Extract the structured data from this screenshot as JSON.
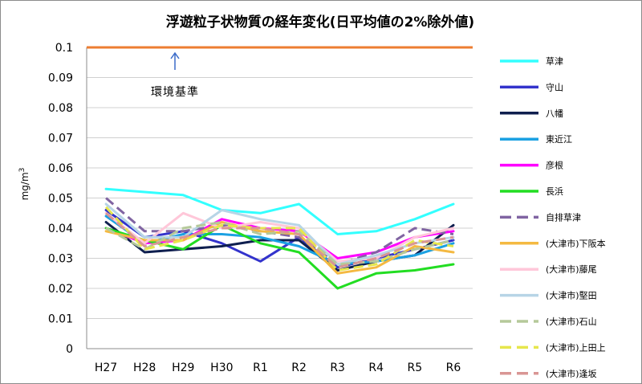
{
  "chart_data": {
    "type": "line",
    "title": "浮遊粒子状物質の経年変化(日平均値の2%除外値)",
    "xlabel": "",
    "ylabel": "mg/m3",
    "ylabel_main": "mg/m",
    "ylabel_sup": "3",
    "ylim": [
      0,
      0.1
    ],
    "yticks": [
      0,
      0.01,
      0.02,
      0.03,
      0.04,
      0.05,
      0.06,
      0.07,
      0.08,
      0.09,
      0.1
    ],
    "ytick_labels": [
      "0",
      "0.01",
      "0.02",
      "0.03",
      "0.04",
      "0.05",
      "0.06",
      "0.07",
      "0.08",
      "0.09",
      "0.1"
    ],
    "categories": [
      "H27",
      "H28",
      "H29",
      "H30",
      "R1",
      "R2",
      "R3",
      "R4",
      "R5",
      "R6"
    ],
    "grid": true,
    "legend_position": "right",
    "reference_line": {
      "value": 0.1,
      "label": "環境基準",
      "color": "#ED7D31"
    },
    "series": [
      {
        "name": "草津",
        "color": "#33FFFF",
        "dashed": false,
        "values": [
          0.053,
          0.052,
          0.051,
          0.046,
          0.045,
          0.048,
          0.038,
          0.039,
          0.043,
          0.048
        ]
      },
      {
        "name": "守山",
        "color": "#3333CC",
        "dashed": false,
        "values": [
          0.046,
          0.037,
          0.039,
          0.035,
          0.029,
          0.037,
          0.027,
          0.03,
          0.033,
          0.036
        ]
      },
      {
        "name": "八幡",
        "color": "#0F1F4F",
        "dashed": false,
        "values": [
          0.042,
          0.032,
          0.033,
          0.034,
          0.036,
          0.036,
          0.026,
          0.029,
          0.031,
          0.041
        ]
      },
      {
        "name": "東近江",
        "color": "#1BA1E2",
        "dashed": false,
        "values": [
          0.044,
          0.035,
          0.038,
          0.038,
          0.037,
          0.034,
          0.028,
          0.029,
          0.031,
          0.035
        ]
      },
      {
        "name": "彦根",
        "color": "#FF00FF",
        "dashed": false,
        "values": [
          0.04,
          0.035,
          0.036,
          0.043,
          0.04,
          0.039,
          0.03,
          0.032,
          0.037,
          0.039
        ]
      },
      {
        "name": "長浜",
        "color": "#22DD22",
        "dashed": false,
        "values": [
          0.04,
          0.036,
          0.033,
          0.041,
          0.035,
          0.032,
          0.02,
          0.025,
          0.026,
          0.028
        ]
      },
      {
        "name": "自排草津",
        "color": "#8064A2",
        "dashed": true,
        "values": [
          0.05,
          0.039,
          0.039,
          0.041,
          0.039,
          0.037,
          0.028,
          0.032,
          0.04,
          0.038
        ]
      },
      {
        "name": "(大津市)下阪本",
        "color": "#F4B942",
        "dashed": false,
        "values": [
          0.039,
          0.036,
          0.036,
          0.042,
          0.039,
          0.038,
          0.025,
          0.027,
          0.034,
          0.032
        ]
      },
      {
        "name": "(大津市)藤尾",
        "color": "#FFC7D9",
        "dashed": false,
        "values": [
          0.045,
          0.035,
          0.045,
          0.04,
          0.042,
          0.04,
          0.029,
          0.03,
          0.037,
          0.04
        ]
      },
      {
        "name": "(大津市)堅田",
        "color": "#B7D5E6",
        "dashed": false,
        "values": [
          0.048,
          0.037,
          0.037,
          0.046,
          0.043,
          0.041,
          0.028,
          0.031,
          0.035,
          0.037
        ]
      },
      {
        "name": "(大津市)石山",
        "color": "#B5C99A",
        "dashed": true,
        "values": [
          0.04,
          0.033,
          0.04,
          0.042,
          0.038,
          0.039,
          0.028,
          0.029,
          0.033,
          0.036
        ]
      },
      {
        "name": "(大津市)上田上",
        "color": "#E6E64C",
        "dashed": true,
        "values": [
          0.047,
          0.033,
          0.036,
          0.041,
          0.04,
          0.04,
          0.026,
          0.028,
          0.036,
          0.034
        ]
      },
      {
        "name": "(大津市)逢坂",
        "color": "#D99694",
        "dashed": true,
        "values": [
          0.045,
          0.034,
          0.037,
          0.04,
          0.04,
          0.038,
          0.027,
          0.03,
          0.035,
          0.037
        ]
      }
    ]
  }
}
